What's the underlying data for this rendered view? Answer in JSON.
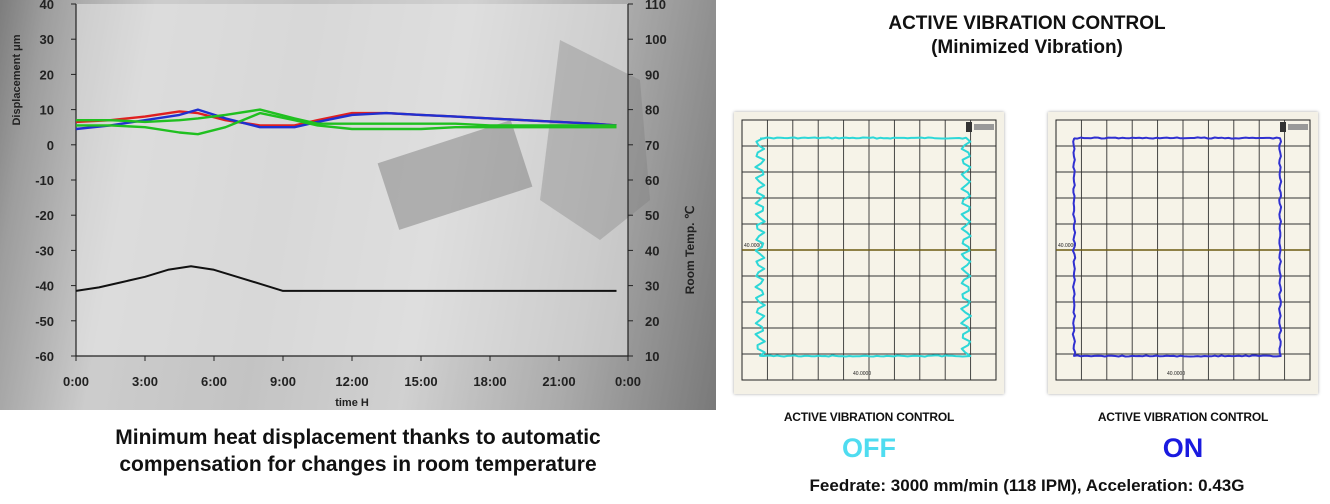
{
  "chart_data": [
    {
      "type": "line",
      "ylabel_left": "Displacement μm",
      "ylabel_right": "Room Temp. ℃",
      "xlabel": "time H",
      "x_ticks": [
        "0:00",
        "3:00",
        "6:00",
        "9:00",
        "12:00",
        "15:00",
        "18:00",
        "21:00",
        "0:00"
      ],
      "yleft_ticks": [
        40,
        30,
        20,
        10,
        0,
        -10,
        -20,
        -30,
        -40,
        -50,
        -60
      ],
      "yright_ticks": [
        110,
        100,
        90,
        80,
        70,
        60,
        50,
        40,
        30,
        20,
        10
      ],
      "ylim_left": [
        -60,
        40
      ],
      "ylim_right": [
        10,
        110
      ],
      "xlim": [
        0,
        24
      ],
      "series": [
        {
          "axis": "left",
          "color": "#e02020",
          "x": [
            0,
            1.5,
            3,
            4.5,
            5.3,
            6.5,
            8,
            9.5,
            10.5,
            12,
            13.5,
            15,
            16.5,
            18,
            19.5,
            21,
            22.5,
            23.5
          ],
          "y": [
            6.5,
            7,
            8,
            9.5,
            9,
            7,
            5.5,
            5.5,
            7,
            9,
            9,
            8.5,
            8,
            7.5,
            7,
            6.5,
            6,
            5.5
          ]
        },
        {
          "axis": "left",
          "color": "#2030d0",
          "x": [
            0,
            1.5,
            3,
            4.5,
            5.3,
            6.5,
            8,
            9.5,
            10.5,
            12,
            13.5,
            15,
            16.5,
            18,
            19.5,
            21,
            22.5,
            23.5
          ],
          "y": [
            4.5,
            5.5,
            7,
            8.5,
            10,
            7.5,
            5,
            5,
            6.5,
            8.5,
            9,
            8.5,
            8,
            7.5,
            7,
            6.5,
            6,
            5.5
          ]
        },
        {
          "axis": "left",
          "color": "#20c020",
          "x": [
            0,
            1.5,
            3,
            4.5,
            5.3,
            6.5,
            8,
            9.5,
            10.5,
            12,
            13.5,
            15,
            16.5,
            18,
            19.5,
            21,
            22.5,
            23.5
          ],
          "y": [
            5.5,
            5.5,
            5,
            3.5,
            3,
            5,
            9,
            7,
            5.5,
            4.5,
            4.5,
            4.5,
            5,
            5,
            5,
            5,
            5,
            5
          ]
        },
        {
          "axis": "left",
          "color": "#20c020",
          "x": [
            0,
            1.5,
            3,
            4.5,
            5.3,
            6.5,
            8,
            9.5,
            10.5,
            12,
            13.5,
            15,
            16.5,
            18,
            19.5,
            21,
            22.5,
            23.5
          ],
          "y": [
            7,
            7,
            6.5,
            7,
            7.5,
            8.5,
            10,
            7.5,
            6,
            6,
            6,
            6,
            6,
            5.5,
            5.5,
            5.5,
            5.5,
            5.5
          ]
        },
        {
          "axis": "right",
          "color": "#111111",
          "x": [
            0,
            1,
            2,
            3,
            4,
            5,
            6,
            7,
            8,
            9,
            12,
            15,
            18,
            21,
            23.5
          ],
          "y": [
            28.5,
            29.5,
            31,
            32.5,
            34.5,
            35.5,
            34.5,
            32.5,
            30.5,
            28.5,
            28.5,
            28.5,
            28.5,
            28.5,
            28.5
          ]
        }
      ]
    },
    {
      "type": "scatter",
      "title": "ACTIVE VIBRATION CONTROL",
      "subtitle": "(Minimized Vibration)",
      "panels": [
        {
          "label": "ACTIVE VIBRATION CONTROL",
          "state": "OFF",
          "state_color": "#4fdcf0",
          "trace_color": "#2ed7d7",
          "vibration": "high",
          "axis_label_left": "40.0000",
          "axis_label_bottom": "40.0000"
        },
        {
          "label": "ACTIVE VIBRATION CONTROL",
          "state": "ON",
          "state_color": "#1a1adf",
          "trace_color": "#3030d0",
          "vibration": "low",
          "axis_label_left": "40.0000",
          "axis_label_bottom": "40.0000"
        }
      ]
    }
  ],
  "left_caption": {
    "line1": "Minimum heat displacement thanks to automatic",
    "line2": "compensation for changes in room temperature"
  },
  "footer": "Feedrate: 3000 mm/min (118 IPM), Acceleration: 0.43G"
}
